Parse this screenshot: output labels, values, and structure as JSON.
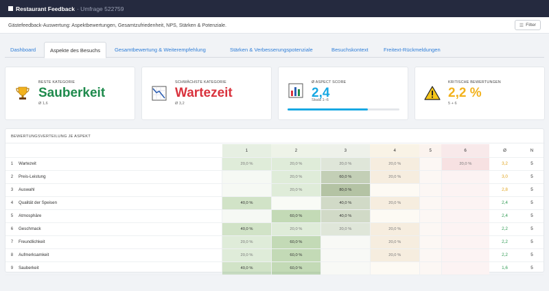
{
  "app": {
    "title": "Restaurant Feedback",
    "subtitle": "· Umfrage 522759"
  },
  "description": "Gästefeedback-Auswertung: Aspektbewertungen, Gesamtzufriedenheit, NPS, Stärken & Potenziale.",
  "filter_label": "Filter",
  "tabs": [
    "Dashboard",
    "Aspekte des Besuchs",
    "Gesamtbewertung & Weiterempfehlung",
    "Stärken & Verbesserungspotenziale",
    "Besuchskontext",
    "Freitext-Rückmeldungen"
  ],
  "active_tab": 1,
  "cards": [
    {
      "label": "Beste Kategorie",
      "value": "Sauberkeit",
      "sub": "Ø 1,6",
      "color": "#1e8a4c",
      "icon": "trophy-icon"
    },
    {
      "label": "Schwächste Kategorie",
      "value": "Wartezeit",
      "sub": "Ø 3,2",
      "color": "#d9323d",
      "icon": "chart-down-icon"
    },
    {
      "label": "Ø Aspect Score",
      "value": "2,4",
      "sub": "Skala 1–6",
      "color": "#17a8e3",
      "icon": "bar-chart-icon",
      "progress": 0.72
    },
    {
      "label": "Kritische Bewertungen",
      "value": "2,2 %",
      "sub": "5 + 6",
      "color": "#f2b21d",
      "icon": "warning-icon"
    }
  ],
  "distribution": {
    "title": "BEWERTUNGSVERTEILUNG JE ASPEKT",
    "columns": [
      "1",
      "2",
      "3",
      "4",
      "5",
      "6",
      "Ø",
      "N"
    ],
    "rows": [
      {
        "idx": "1",
        "name": "Wartezeit",
        "cells": [
          "20,0 %",
          "20,0 %",
          "20,0 %",
          "20,0 %",
          "",
          "20,0 %"
        ],
        "avg": "3,2",
        "n": "5",
        "avg_color": "#e0a21a"
      },
      {
        "idx": "2",
        "name": "Preis-Leistung",
        "cells": [
          "",
          "20,0 %",
          "60,0 %",
          "20,0 %",
          "",
          ""
        ],
        "avg": "3,0",
        "n": "5",
        "avg_color": "#e0a21a"
      },
      {
        "idx": "3",
        "name": "Auswahl",
        "cells": [
          "",
          "20,0 %",
          "80,0 %",
          "",
          "",
          ""
        ],
        "avg": "2,8",
        "n": "5",
        "avg_color": "#e0a21a"
      },
      {
        "idx": "4",
        "name": "Qualität der Speisen",
        "cells": [
          "40,0 %",
          "",
          "40,0 %",
          "20,0 %",
          "",
          ""
        ],
        "avg": "2,4",
        "n": "5",
        "avg_color": "#2e9a52"
      },
      {
        "idx": "5",
        "name": "Atmosphäre",
        "cells": [
          "",
          "60,0 %",
          "40,0 %",
          "",
          "",
          ""
        ],
        "avg": "2,4",
        "n": "5",
        "avg_color": "#2e9a52"
      },
      {
        "idx": "6",
        "name": "Geschmack",
        "cells": [
          "40,0 %",
          "20,0 %",
          "20,0 %",
          "20,0 %",
          "",
          ""
        ],
        "avg": "2,2",
        "n": "5",
        "avg_color": "#2e9a52"
      },
      {
        "idx": "7",
        "name": "Freundlichkeit",
        "cells": [
          "20,0 %",
          "60,0 %",
          "",
          "20,0 %",
          "",
          ""
        ],
        "avg": "2,2",
        "n": "5",
        "avg_color": "#2e9a52"
      },
      {
        "idx": "8",
        "name": "Aufmerksamkeit",
        "cells": [
          "20,0 %",
          "60,0 %",
          "",
          "20,0 %",
          "",
          ""
        ],
        "avg": "2,2",
        "n": "5",
        "avg_color": "#2e9a52"
      },
      {
        "idx": "9",
        "name": "Sauberkeit",
        "cells": [
          "40,0 %",
          "60,0 %",
          "",
          "",
          "",
          ""
        ],
        "avg": "1,6",
        "n": "5",
        "avg_color": "#2e9a52"
      }
    ]
  }
}
